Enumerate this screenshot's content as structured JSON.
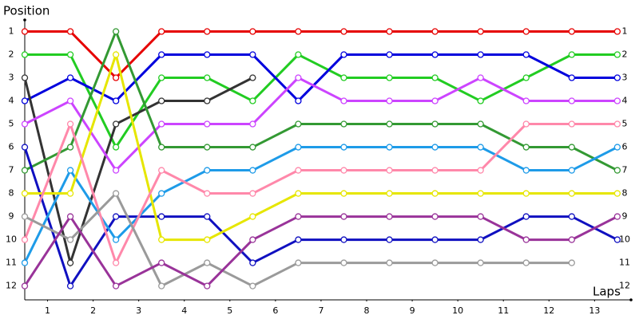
{
  "chart_data": {
    "type": "line",
    "y_label": "Position",
    "x_label": "Laps",
    "x": [
      0,
      1,
      2,
      3,
      4,
      5,
      6,
      7,
      8,
      9,
      10,
      11,
      12,
      13
    ],
    "xlim": [
      0,
      13.3
    ],
    "ylim": [
      0.5,
      12.6
    ],
    "y_inverted": true,
    "xticks": [
      {
        "value": 0.5,
        "label": "1"
      },
      {
        "value": 1.5,
        "label": "2"
      },
      {
        "value": 2.5,
        "label": "3"
      },
      {
        "value": 3.5,
        "label": "4"
      },
      {
        "value": 4.5,
        "label": "5"
      },
      {
        "value": 5.5,
        "label": "6"
      },
      {
        "value": 6.5,
        "label": "7"
      },
      {
        "value": 7.5,
        "label": "8"
      },
      {
        "value": 8.5,
        "label": "9"
      },
      {
        "value": 9.5,
        "label": "10"
      },
      {
        "value": 10.5,
        "label": "11"
      },
      {
        "value": 11.5,
        "label": "12"
      },
      {
        "value": 12.5,
        "label": "13"
      }
    ],
    "yticks": [
      1,
      2,
      3,
      4,
      5,
      6,
      7,
      8,
      9,
      10,
      11,
      12
    ],
    "series": [
      {
        "color": "#e60000",
        "values": [
          1,
          1,
          3,
          1,
          1,
          1,
          1,
          1,
          1,
          1,
          1,
          1,
          1,
          1
        ]
      },
      {
        "color": "#22cc22",
        "values": [
          2,
          2,
          6,
          3,
          3,
          4,
          2,
          3,
          3,
          3,
          4,
          3,
          2,
          2
        ]
      },
      {
        "color": "#0000dd",
        "values": [
          4,
          3,
          4,
          2,
          2,
          2,
          4,
          2,
          2,
          2,
          2,
          2,
          3,
          3
        ]
      },
      {
        "color": "#333333",
        "values": [
          3,
          11,
          5,
          4,
          4,
          3,
          null,
          null,
          null,
          null,
          null,
          null,
          null,
          null
        ]
      },
      {
        "color": "#cc44ff",
        "values": [
          5,
          4,
          7,
          5,
          5,
          5,
          3,
          4,
          4,
          4,
          3,
          4,
          4,
          4
        ]
      },
      {
        "color": "#339933",
        "values": [
          7,
          6,
          1,
          6,
          6,
          6,
          5,
          5,
          5,
          5,
          5,
          6,
          6,
          7
        ]
      },
      {
        "color": "#1010c0",
        "values": [
          6,
          12,
          9,
          9,
          9,
          11,
          10,
          10,
          10,
          10,
          10,
          9,
          9,
          10
        ]
      },
      {
        "color": "#1e9be8",
        "values": [
          11,
          7,
          10,
          8,
          7,
          7,
          6,
          6,
          6,
          6,
          6,
          7,
          7,
          6
        ]
      },
      {
        "color": "#e6e600",
        "values": [
          8,
          8,
          2,
          10,
          10,
          9,
          8,
          8,
          8,
          8,
          8,
          8,
          8,
          8
        ]
      },
      {
        "color": "#ff88aa",
        "values": [
          10,
          5,
          11,
          7,
          8,
          8,
          7,
          7,
          7,
          7,
          7,
          5,
          5,
          5
        ]
      },
      {
        "color": "#9a9a9a",
        "values": [
          9,
          10,
          8,
          12,
          11,
          12,
          11,
          11,
          11,
          11,
          11,
          11,
          11,
          null
        ]
      },
      {
        "color": "#993399",
        "values": [
          12,
          9,
          12,
          11,
          12,
          10,
          9,
          9,
          9,
          9,
          9,
          10,
          10,
          9
        ]
      }
    ]
  }
}
